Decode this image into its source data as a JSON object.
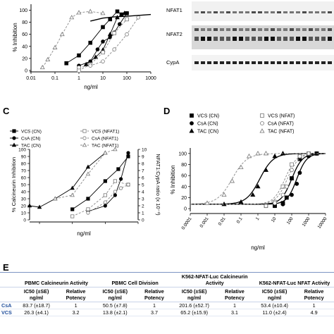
{
  "panels": {
    "A": {
      "letter": ""
    },
    "B": {
      "letter": "",
      "bands": [
        "NFAT1",
        "NFAT2",
        "CypA"
      ]
    },
    "C": {
      "letter": "C"
    },
    "D": {
      "letter": "D"
    },
    "E": {
      "letter": "E"
    }
  },
  "chart_data": [
    {
      "id": "A",
      "type": "line",
      "xscale": "log",
      "xlabel": "ng/ml",
      "ylabel": "% Inhibition",
      "xlim": [
        0.01,
        1000
      ],
      "ylim": [
        0,
        110
      ],
      "xticks": [
        "0.01",
        "0.1",
        "1",
        "10",
        "100",
        "1000"
      ],
      "yticks": [
        "0",
        "20",
        "40",
        "60",
        "80",
        "100"
      ],
      "series": [
        {
          "marker": "square",
          "filled": true,
          "dashed": false,
          "x": [
            0.3,
            1,
            3,
            10,
            20,
            40,
            60,
            100
          ],
          "y": [
            12,
            25,
            46,
            72,
            85,
            98,
            93,
            95
          ]
        },
        {
          "marker": "circle",
          "filled": true,
          "dashed": false,
          "x": [
            1,
            3,
            6,
            10,
            20,
            30,
            50,
            100
          ],
          "y": [
            8,
            15,
            35,
            48,
            55,
            63,
            77,
            95
          ]
        },
        {
          "marker": "triangle",
          "filled": true,
          "dashed": false,
          "x": [
            2,
            5,
            10,
            20,
            40,
            80
          ],
          "y": [
            10,
            22,
            34,
            60,
            88,
            95
          ]
        },
        {
          "marker": "triangle",
          "filled": false,
          "dashed": true,
          "x": [
            0.03,
            0.05,
            0.1,
            0.2,
            0.5,
            1,
            3,
            10
          ],
          "y": [
            5,
            18,
            38,
            60,
            88,
            96,
            98,
            95
          ]
        },
        {
          "marker": "square",
          "filled": false,
          "dashed": true,
          "x": [
            1,
            3,
            10,
            30,
            100
          ],
          "y": [
            0,
            10,
            30,
            62,
            85
          ]
        },
        {
          "marker": "circle",
          "filled": false,
          "dashed": true,
          "x": [
            1,
            3,
            10,
            30,
            100,
            300
          ],
          "y": [
            5,
            8,
            15,
            35,
            60,
            88
          ]
        }
      ],
      "fit_line": {
        "x": [
          3,
          10,
          30,
          100,
          1000
        ],
        "y": [
          82,
          87,
          89,
          90,
          93
        ]
      }
    },
    {
      "id": "C",
      "type": "line",
      "xscale": "log",
      "xlabel": "ng/ml",
      "ylabel": "% Calcineurin Inhibition",
      "ylabel_right": "NFAT1:CypA ratio (x 10⁻³)",
      "xlim": [
        0.05,
        100
      ],
      "ylim": [
        0,
        100
      ],
      "ylim_right": [
        0,
        10
      ],
      "yticks": [
        "0",
        "10",
        "20",
        "30",
        "40",
        "50",
        "60",
        "70",
        "80",
        "90",
        "100"
      ],
      "yticks_right": [
        "0",
        "1",
        "2",
        "3",
        "4",
        "5",
        "6",
        "7",
        "8",
        "9",
        "10"
      ],
      "legend": [
        "VCS (CN)",
        "CsA (CN)",
        "TAC (CN)",
        "VCS (NFAT1)",
        "CsA (NFAT1)",
        "TAC (NFAT1)"
      ],
      "legend_position": "top",
      "series": [
        {
          "name": "VCS (CN)",
          "marker": "square",
          "filled": true,
          "dashed": false,
          "axis": "left",
          "x": [
            1,
            3,
            10,
            25,
            50
          ],
          "y": [
            15,
            30,
            55,
            72,
            90
          ]
        },
        {
          "name": "CsA (CN)",
          "marker": "circle",
          "filled": true,
          "dashed": false,
          "axis": "left",
          "x": [
            3,
            10,
            20,
            30,
            50
          ],
          "y": [
            12,
            20,
            35,
            58,
            95
          ]
        },
        {
          "name": "TAC (CN)",
          "marker": "triangle",
          "filled": true,
          "dashed": false,
          "axis": "left",
          "x": [
            0.05,
            0.1,
            0.3,
            1,
            3,
            10
          ],
          "y": [
            20,
            18,
            30,
            45,
            75,
            95
          ]
        },
        {
          "name": "VCS (NFAT1)",
          "marker": "square",
          "filled": false,
          "dashed": true,
          "axis": "right",
          "x": [
            1,
            3,
            10,
            20,
            50
          ],
          "y": [
            0.5,
            1.5,
            3.5,
            5.5,
            5.0
          ]
        },
        {
          "name": "CsA (NFAT1)",
          "marker": "circle",
          "filled": false,
          "dashed": true,
          "axis": "right",
          "x": [
            3,
            10,
            20,
            30,
            50
          ],
          "y": [
            1.0,
            2.5,
            4.0,
            4.5,
            5.0
          ]
        },
        {
          "name": "TAC (NFAT1)",
          "marker": "triangle",
          "filled": false,
          "dashed": true,
          "axis": "right",
          "x": [
            0.3,
            1,
            3,
            10,
            20
          ],
          "y": [
            3.0,
            3.5,
            6.5,
            9.5,
            10
          ]
        }
      ]
    },
    {
      "id": "D",
      "type": "scatter",
      "xscale": "log",
      "xlabel": "ng/ml",
      "ylabel": "% Inhibition",
      "xlim": [
        0.0001,
        10000
      ],
      "ylim": [
        -5,
        110
      ],
      "xticks": [
        "0.0001",
        "0.001",
        "0.01",
        "0.1",
        "1",
        "10",
        "100",
        "1000",
        "10000"
      ],
      "yticks": [
        "0",
        "20",
        "40",
        "60",
        "80",
        "100"
      ],
      "legend": [
        "VCS (CN)",
        "CsA (CN)",
        "TAC (CN)",
        "VCS (NFAT)",
        "CsA (NFAT)",
        "TAC (NFAT)"
      ],
      "legend_position": "top",
      "series": [
        {
          "name": "VCS (CN)",
          "marker": "square",
          "filled": true,
          "dashed": false,
          "x": [
            10,
            30,
            50,
            100,
            300,
            1000,
            3000
          ],
          "y": [
            5,
            10,
            20,
            55,
            90,
            98,
            100
          ],
          "fit": {
            "x0": 100,
            "h": 1.4
          }
        },
        {
          "name": "CsA (CN)",
          "marker": "circle",
          "filled": true,
          "dashed": false,
          "x": [
            10,
            30,
            100,
            200,
            300,
            1000,
            3000
          ],
          "y": [
            5,
            8,
            25,
            45,
            65,
            95,
            100
          ],
          "fit": {
            "x0": 200,
            "h": 1.5
          }
        },
        {
          "name": "TAC (CN)",
          "marker": "triangle",
          "filled": true,
          "dashed": false,
          "x": [
            0.01,
            0.1,
            0.5,
            1,
            3,
            10,
            30
          ],
          "y": [
            8,
            12,
            25,
            40,
            70,
            95,
            100
          ],
          "fit": {
            "x0": 1.3,
            "h": 1.1
          }
        },
        {
          "name": "VCS (NFAT)",
          "marker": "square",
          "filled": false,
          "dashed": true,
          "x": [
            3,
            10,
            30,
            100,
            300,
            1000
          ],
          "y": [
            5,
            12,
            40,
            80,
            95,
            100
          ],
          "fit": {
            "x0": 40,
            "h": 1.3
          }
        },
        {
          "name": "CsA (NFAT)",
          "marker": "circle",
          "filled": false,
          "dashed": true,
          "x": [
            3,
            10,
            30,
            50,
            100,
            300,
            1000
          ],
          "y": [
            5,
            10,
            25,
            40,
            70,
            95,
            100
          ],
          "fit": {
            "x0": 55,
            "h": 1.3
          }
        },
        {
          "name": "TAC (NFAT)",
          "marker": "triangle",
          "filled": false,
          "dashed": true,
          "x": [
            0.001,
            0.01,
            0.03,
            0.1,
            0.3,
            1,
            3
          ],
          "y": [
            10,
            25,
            50,
            75,
            95,
            100,
            100
          ],
          "fit": {
            "x0": 0.03,
            "h": 1.0
          }
        }
      ]
    },
    {
      "id": "E",
      "type": "table",
      "columns": [
        {
          "label": "PBMC Calcineurin Activity"
        },
        {
          "label": "PBMC Cell Division"
        },
        {
          "label": "K562-NFAT-Luc Calcineurin Activity"
        },
        {
          "label": "K562-NFAT-Luc NFAT Activity"
        }
      ],
      "subheaders": [
        "IC50 (±SE) ng/ml",
        "Relative Potency"
      ],
      "rows": [
        {
          "drug": "CsA",
          "values": [
            "83.7 (±18.7)",
            "1",
            "50.5 (±7.8)",
            "1",
            "201.6 (±52.7)",
            "1",
            "53.4 (±10.4)",
            "1"
          ]
        },
        {
          "drug": "VCS",
          "values": [
            "26.3 (±4.1)",
            "3.2",
            "13.8 (±2.1)",
            "3.7",
            "65.2 (±15.9)",
            "3.1",
            "11.0 (±2.4)",
            "4.9"
          ]
        }
      ]
    }
  ]
}
